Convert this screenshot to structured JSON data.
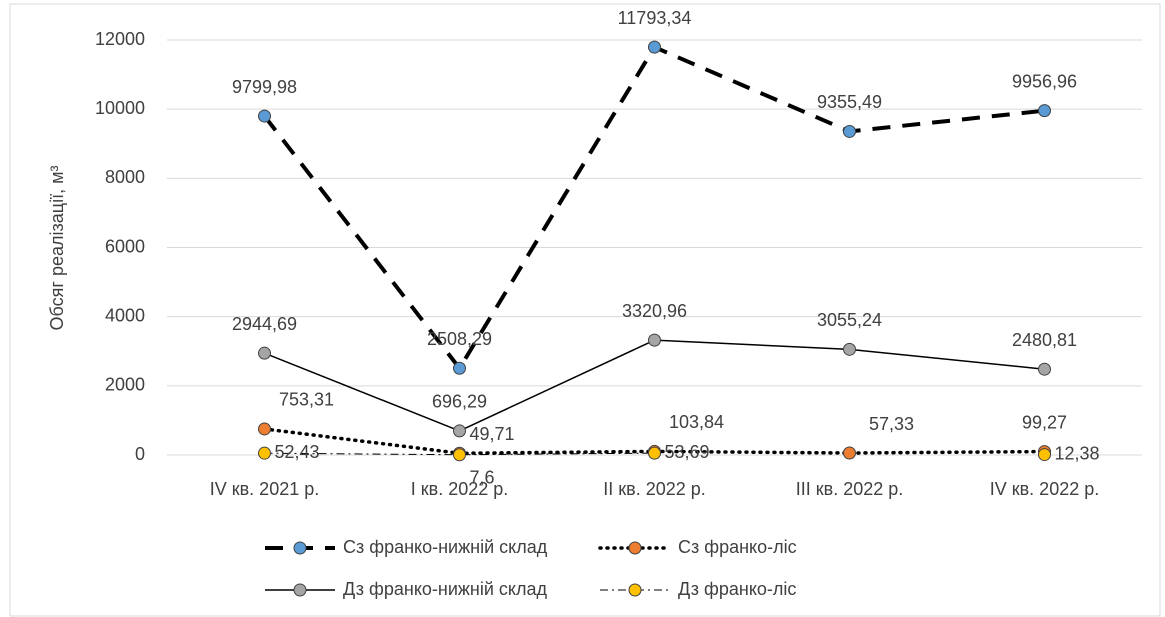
{
  "chart_data": {
    "type": "line",
    "y_label": "Обсяг реалізації, м³",
    "categories": [
      "IV кв. 2021 р.",
      "І кв. 2022 р.",
      "ІІ кв. 2022 р.",
      "ІІІ кв. 2022 р.",
      "IV кв. 2022 р."
    ],
    "ylim": [
      0,
      12000
    ],
    "yticks": [
      0,
      2000,
      4000,
      6000,
      8000,
      10000,
      12000
    ],
    "grid": true,
    "legend": "bottom",
    "series": [
      {
        "name": "Сз франко-нижній склад",
        "color": "#5b9bd5",
        "line_color": "#000000",
        "dash": "dashed",
        "values": [
          9799.98,
          2508.29,
          11793.34,
          9355.49,
          9956.96
        ],
        "value_labels": [
          "9799,98",
          "2508,29",
          "11793,34",
          "9355,49",
          "9956,96"
        ]
      },
      {
        "name": "Сз франко-ліс",
        "color": "#ed7d31",
        "line_color": "#000000",
        "dash": "dotted",
        "values": [
          753.31,
          49.71,
          103.84,
          57.33,
          99.27
        ],
        "value_labels": [
          "753,31",
          "49,71",
          "103,84",
          "57,33",
          "99,27"
        ]
      },
      {
        "name": "Дз франко-нижній склад",
        "color": "#a5a5a5",
        "line_color": "#000000",
        "dash": "solid",
        "values": [
          2944.69,
          696.29,
          3320.96,
          3055.24,
          2480.81
        ],
        "value_labels": [
          "2944,69",
          "696,29",
          "3320,96",
          "3055,24",
          "2480,81"
        ]
      },
      {
        "name": "Дз франко-ліс",
        "color": "#ffc000",
        "line_color": "#000000",
        "dash": "dashdot",
        "values": [
          52.43,
          7.6,
          53.69,
          null,
          12.38
        ],
        "value_labels": [
          "52,43",
          "7,6",
          "53,69",
          null,
          "12,38"
        ]
      }
    ]
  }
}
